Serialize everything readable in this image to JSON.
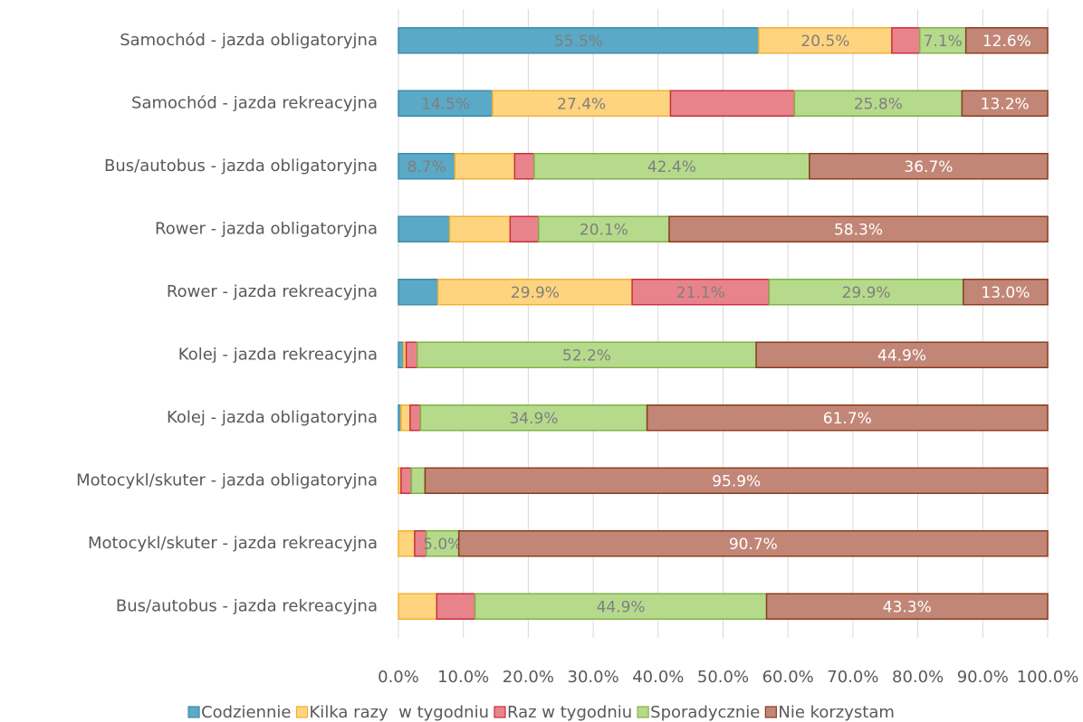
{
  "chart_data": {
    "type": "bar",
    "orientation": "horizontal",
    "stacked": true,
    "categories": [
      "Samochód - jazda obligatoryjna",
      "Samochód - jazda rekreacyjna",
      "Bus/autobus - jazda obligatoryjna",
      "Rower - jazda obligatoryjna",
      "Rower - jazda rekreacyjna",
      "Kolej - jazda rekreacyjna",
      "Kolej - jazda obligatoryjna",
      "Motocykl/skuter - jazda obligatoryjna",
      "Motocykl/skuter - jazda rekreacyjna",
      "Bus/autobus - jazda rekreacyjna"
    ],
    "series": [
      {
        "name": "Codziennie",
        "color": "#5aa9c7",
        "edge": "#3f8dab",
        "values": [
          55.5,
          14.5,
          8.7,
          7.9,
          6.1,
          0.8,
          0.4,
          0,
          0,
          0
        ],
        "value_labels": [
          "55.5%",
          "14.5%",
          "8.7%",
          null,
          null,
          null,
          null,
          null,
          null,
          null
        ]
      },
      {
        "name": "Kilka razy  w tygodniu",
        "color": "#ffd47f",
        "edge": "#f2b134",
        "values": [
          20.5,
          27.4,
          9.2,
          9.3,
          29.9,
          0.4,
          1.4,
          0.4,
          2.5,
          5.9
        ],
        "value_labels": [
          "20.5%",
          "27.4%",
          null,
          null,
          "29.9%",
          null,
          null,
          null,
          null,
          null
        ]
      },
      {
        "name": "Raz w tygodniu",
        "color": "#e8838b",
        "edge": "#c8323d",
        "values": [
          4.3,
          19.1,
          3.0,
          4.4,
          21.1,
          1.7,
          1.6,
          1.6,
          1.8,
          5.9
        ],
        "value_labels": [
          null,
          null,
          null,
          null,
          "21.1%",
          null,
          null,
          null,
          null,
          null
        ]
      },
      {
        "name": "Sporadycznie",
        "color": "#b6da8c",
        "edge": "#82b246",
        "values": [
          7.1,
          25.8,
          42.4,
          20.1,
          29.9,
          52.2,
          34.9,
          2.1,
          5.0,
          44.9
        ],
        "value_labels": [
          "7.1%",
          "25.8%",
          "42.4%",
          "20.1%",
          "29.9%",
          "52.2%",
          "34.9%",
          null,
          "5.0%",
          "44.9%"
        ]
      },
      {
        "name": "Nie korzystam",
        "color": "#c28677",
        "edge": "#8c3c1e",
        "values": [
          12.6,
          13.2,
          36.7,
          58.3,
          13.0,
          44.9,
          61.7,
          95.9,
          90.7,
          43.3
        ],
        "value_labels": [
          "12.6%",
          "13.2%",
          "36.7%",
          "58.3%",
          "13.0%",
          "44.9%",
          "61.7%",
          "95.9%",
          "90.7%",
          "43.3%"
        ]
      }
    ],
    "xlim": [
      0,
      100
    ],
    "xticks": [
      {
        "value": 0,
        "label": "0.0%"
      },
      {
        "value": 10,
        "label": "10.0%"
      },
      {
        "value": 20,
        "label": "20.0%"
      },
      {
        "value": 30,
        "label": "30.0%"
      },
      {
        "value": 40,
        "label": "40.0%"
      },
      {
        "value": 50,
        "label": "50.0%"
      },
      {
        "value": 60,
        "label": "60.0%"
      },
      {
        "value": 70,
        "label": "70.0%"
      },
      {
        "value": 80,
        "label": "80.0%"
      },
      {
        "value": 90,
        "label": "90.0%"
      },
      {
        "value": 100,
        "label": "100.0%"
      }
    ],
    "grid": true,
    "legend": "bottom"
  }
}
